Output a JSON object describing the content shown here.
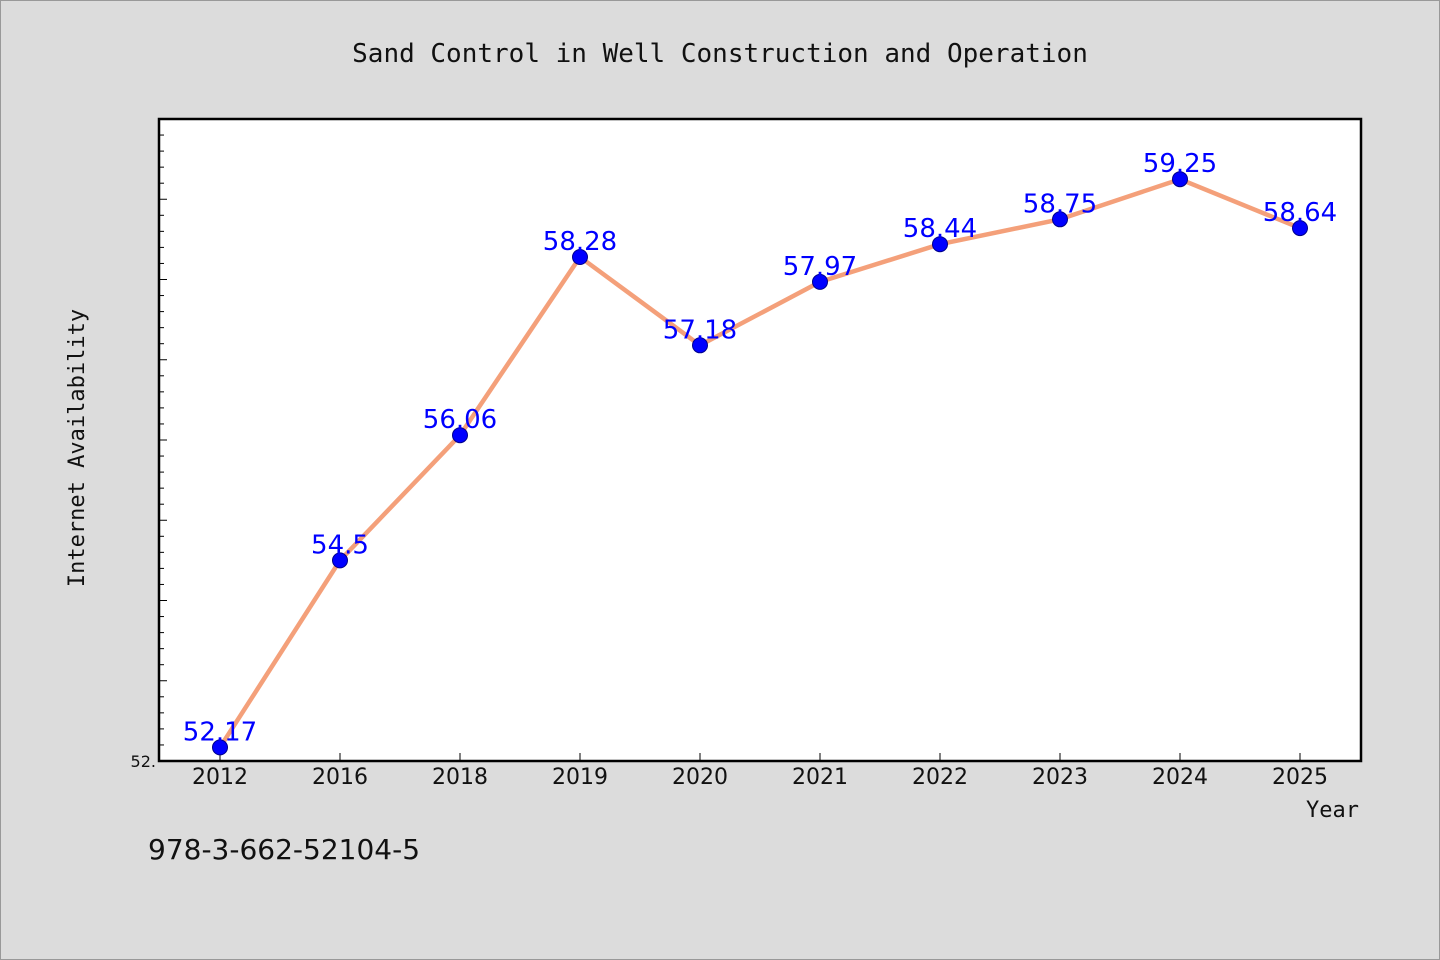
{
  "chart_data": {
    "type": "line",
    "title": "Sand Control in Well Construction and Operation",
    "xlabel": "Year",
    "ylabel": "Internet Availability",
    "categories": [
      "2012",
      "2016",
      "2018",
      "2019",
      "2020",
      "2021",
      "2022",
      "2023",
      "2024",
      "2025"
    ],
    "series": [
      {
        "values": [
          52.17,
          54.5,
          56.06,
          58.28,
          57.18,
          57.97,
          58.44,
          58.75,
          59.25,
          58.64
        ],
        "data_labels": [
          "52.17",
          "54.5",
          "56.06",
          "58.28",
          "57.18",
          "57.97",
          "58.44",
          "58.75",
          "59.25",
          "58.64"
        ],
        "line_color": "#f4a07a",
        "marker_color": "#0000ff"
      }
    ],
    "ylim": [
      52.0,
      60.0
    ],
    "ytick_labels": [
      "52."
    ],
    "label_color": "#0000ff",
    "grid": false,
    "legend": "none"
  },
  "footer": {
    "isbn": "978-3-662-52104-5"
  },
  "colors": {
    "background": "#dcdcdc",
    "plot_background": "#ffffff"
  }
}
